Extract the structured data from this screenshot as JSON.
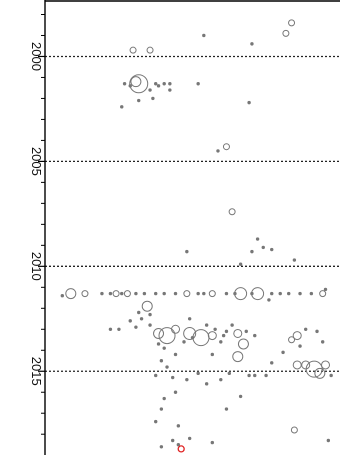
{
  "chart_data": {
    "type": "scatter",
    "title": "",
    "xlabel": "",
    "ylabel": "",
    "y_axis": {
      "orientation": "vertical, rotated tick labels",
      "ylim": [
        1997.5,
        2018.8
      ],
      "ticks": [
        2000,
        2005,
        2010,
        2015
      ],
      "tick_labels": [
        "2000",
        "2005",
        "2010",
        "2015"
      ],
      "minor_ticks": [
        1998,
        1999,
        2001,
        2002,
        2003,
        2004,
        2006,
        2007,
        2008,
        2009,
        2011,
        2012,
        2013,
        2014,
        2016,
        2017,
        2018
      ]
    },
    "x_axis": {
      "xlim": [
        0,
        100
      ],
      "labels_visible": false
    },
    "reference_lines": [
      {
        "y": 2000,
        "style": "dotted"
      },
      {
        "y": 2005,
        "style": "dotted"
      },
      {
        "y": 2010,
        "style": "dotted"
      },
      {
        "y": 2015,
        "style": "dotted"
      }
    ],
    "grid": false,
    "legend": "none",
    "marker_color": "#777777",
    "highlight_color": "#e02020",
    "series": [
      {
        "marker": "open-circle",
        "points": [
          {
            "x": 85,
            "y": 1998.4,
            "size": 3
          },
          {
            "x": 83,
            "y": 1998.9,
            "size": 3
          },
          {
            "x": 29,
            "y": 1999.7,
            "size": 3
          },
          {
            "x": 35,
            "y": 1999.7,
            "size": 3
          },
          {
            "x": 31,
            "y": 2001.3,
            "size": 9
          },
          {
            "x": 30,
            "y": 2001.2,
            "size": 5
          },
          {
            "x": 62,
            "y": 2004.3,
            "size": 3
          },
          {
            "x": 64,
            "y": 2007.4,
            "size": 3
          },
          {
            "x": 7,
            "y": 2011.3,
            "size": 5
          },
          {
            "x": 12,
            "y": 2011.3,
            "size": 3
          },
          {
            "x": 23,
            "y": 2011.3,
            "size": 3
          },
          {
            "x": 27,
            "y": 2011.3,
            "size": 3
          },
          {
            "x": 48,
            "y": 2011.3,
            "size": 3
          },
          {
            "x": 57,
            "y": 2011.3,
            "size": 3
          },
          {
            "x": 67,
            "y": 2011.3,
            "size": 6
          },
          {
            "x": 73,
            "y": 2011.3,
            "size": 6
          },
          {
            "x": 96,
            "y": 2011.3,
            "size": 3
          },
          {
            "x": 34,
            "y": 2011.9,
            "size": 5
          },
          {
            "x": 38,
            "y": 2013.2,
            "size": 5
          },
          {
            "x": 41,
            "y": 2013.3,
            "size": 8
          },
          {
            "x": 49,
            "y": 2013.2,
            "size": 6
          },
          {
            "x": 53,
            "y": 2013.4,
            "size": 8
          },
          {
            "x": 44,
            "y": 2013.0,
            "size": 4
          },
          {
            "x": 57,
            "y": 2013.3,
            "size": 4
          },
          {
            "x": 66,
            "y": 2013.2,
            "size": 4
          },
          {
            "x": 68,
            "y": 2013.7,
            "size": 5
          },
          {
            "x": 66,
            "y": 2014.3,
            "size": 5
          },
          {
            "x": 87,
            "y": 2013.3,
            "size": 4
          },
          {
            "x": 85,
            "y": 2013.5,
            "size": 3
          },
          {
            "x": 87,
            "y": 2014.7,
            "size": 4
          },
          {
            "x": 90,
            "y": 2014.7,
            "size": 4
          },
          {
            "x": 93,
            "y": 2014.9,
            "size": 8
          },
          {
            "x": 95,
            "y": 2015.1,
            "size": 5
          },
          {
            "x": 97,
            "y": 2014.7,
            "size": 4
          },
          {
            "x": 86,
            "y": 2017.8,
            "size": 3
          }
        ]
      },
      {
        "marker": "filled-dot",
        "points": [
          {
            "x": 54,
            "y": 1999.0
          },
          {
            "x": 71,
            "y": 1999.4
          },
          {
            "x": 70,
            "y": 2002.2
          },
          {
            "x": 37,
            "y": 2001.3
          },
          {
            "x": 38,
            "y": 2001.4
          },
          {
            "x": 40,
            "y": 2001.3
          },
          {
            "x": 42,
            "y": 2001.3
          },
          {
            "x": 52,
            "y": 2001.3
          },
          {
            "x": 26,
            "y": 2001.3
          },
          {
            "x": 28,
            "y": 2001.4
          },
          {
            "x": 35,
            "y": 2001.6
          },
          {
            "x": 42,
            "y": 2001.6
          },
          {
            "x": 36,
            "y": 2002.0
          },
          {
            "x": 31,
            "y": 2002.1
          },
          {
            "x": 25,
            "y": 2002.4
          },
          {
            "x": 59,
            "y": 2004.5
          },
          {
            "x": 73,
            "y": 2008.7
          },
          {
            "x": 71,
            "y": 2009.3
          },
          {
            "x": 75,
            "y": 2009.1
          },
          {
            "x": 78,
            "y": 2009.2
          },
          {
            "x": 86,
            "y": 2009.7
          },
          {
            "x": 67,
            "y": 2009.9
          },
          {
            "x": 48,
            "y": 2009.3
          },
          {
            "x": 18,
            "y": 2011.3
          },
          {
            "x": 21,
            "y": 2011.3
          },
          {
            "x": 25,
            "y": 2011.3
          },
          {
            "x": 30,
            "y": 2011.3
          },
          {
            "x": 33,
            "y": 2011.3
          },
          {
            "x": 37,
            "y": 2011.3
          },
          {
            "x": 40,
            "y": 2011.3
          },
          {
            "x": 44,
            "y": 2011.3
          },
          {
            "x": 52,
            "y": 2011.3
          },
          {
            "x": 54,
            "y": 2011.3
          },
          {
            "x": 62,
            "y": 2011.3
          },
          {
            "x": 65,
            "y": 2011.3
          },
          {
            "x": 71,
            "y": 2011.3
          },
          {
            "x": 78,
            "y": 2011.3
          },
          {
            "x": 81,
            "y": 2011.3
          },
          {
            "x": 84,
            "y": 2011.3
          },
          {
            "x": 88,
            "y": 2011.3
          },
          {
            "x": 92,
            "y": 2011.3
          },
          {
            "x": 77,
            "y": 2011.6
          },
          {
            "x": 97,
            "y": 2011.1
          },
          {
            "x": 4,
            "y": 2011.4
          },
          {
            "x": 32,
            "y": 2012.5
          },
          {
            "x": 28,
            "y": 2012.6
          },
          {
            "x": 35,
            "y": 2012.8
          },
          {
            "x": 30,
            "y": 2012.9
          },
          {
            "x": 38,
            "y": 2013.7
          },
          {
            "x": 40,
            "y": 2013.9
          },
          {
            "x": 44,
            "y": 2014.2
          },
          {
            "x": 47,
            "y": 2013.6
          },
          {
            "x": 50,
            "y": 2013.4
          },
          {
            "x": 55,
            "y": 2012.8
          },
          {
            "x": 58,
            "y": 2013.0
          },
          {
            "x": 61,
            "y": 2013.3
          },
          {
            "x": 64,
            "y": 2012.8
          },
          {
            "x": 62,
            "y": 2013.1
          },
          {
            "x": 69,
            "y": 2013.1
          },
          {
            "x": 72,
            "y": 2013.3
          },
          {
            "x": 60,
            "y": 2013.6
          },
          {
            "x": 57,
            "y": 2014.2
          },
          {
            "x": 39,
            "y": 2014.5
          },
          {
            "x": 41,
            "y": 2014.8
          },
          {
            "x": 37,
            "y": 2015.2
          },
          {
            "x": 43,
            "y": 2015.3
          },
          {
            "x": 48,
            "y": 2015.4
          },
          {
            "x": 52,
            "y": 2015.1
          },
          {
            "x": 55,
            "y": 2015.6
          },
          {
            "x": 60,
            "y": 2015.4
          },
          {
            "x": 63,
            "y": 2015.1
          },
          {
            "x": 70,
            "y": 2015.2
          },
          {
            "x": 72,
            "y": 2015.2
          },
          {
            "x": 76,
            "y": 2015.2
          },
          {
            "x": 78,
            "y": 2014.6
          },
          {
            "x": 82,
            "y": 2014.1
          },
          {
            "x": 88,
            "y": 2013.8
          },
          {
            "x": 90,
            "y": 2013.0
          },
          {
            "x": 94,
            "y": 2013.1
          },
          {
            "x": 96,
            "y": 2013.6
          },
          {
            "x": 99,
            "y": 2015.2
          },
          {
            "x": 31,
            "y": 2012.2
          },
          {
            "x": 35,
            "y": 2012.3
          },
          {
            "x": 21,
            "y": 2013.0
          },
          {
            "x": 24,
            "y": 2013.0
          },
          {
            "x": 49,
            "y": 2012.5
          },
          {
            "x": 40,
            "y": 2016.3
          },
          {
            "x": 39,
            "y": 2016.8
          },
          {
            "x": 37,
            "y": 2017.4
          },
          {
            "x": 44,
            "y": 2016.0
          },
          {
            "x": 62,
            "y": 2016.8
          },
          {
            "x": 67,
            "y": 2016.2
          },
          {
            "x": 45,
            "y": 2017.6
          },
          {
            "x": 49,
            "y": 2018.2
          },
          {
            "x": 43,
            "y": 2018.3
          },
          {
            "x": 45,
            "y": 2018.5
          },
          {
            "x": 39,
            "y": 2018.6
          },
          {
            "x": 57,
            "y": 2018.4
          },
          {
            "x": 98,
            "y": 2018.3
          }
        ]
      },
      {
        "marker": "highlight-open-circle",
        "points": [
          {
            "x": 46,
            "y": 2018.7,
            "size": 3
          }
        ]
      }
    ]
  }
}
